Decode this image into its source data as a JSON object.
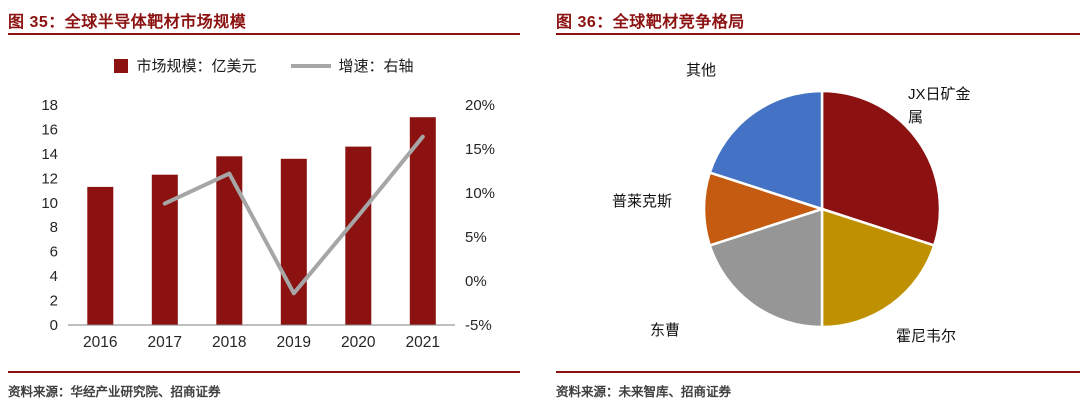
{
  "theme": {
    "accent_red": "#8C1211",
    "text_color": "#262626",
    "source_color": "#404040"
  },
  "left_panel": {
    "title": "图 35：全球半导体靶材市场规模",
    "source": "资料来源：华经产业研究院、招商证券"
  },
  "right_panel": {
    "title": "图 36：全球靶材竞争格局",
    "source": "资料来源：未来智库、招商证券"
  },
  "chart_data": [
    {
      "type": "bar",
      "title": "全球半导体靶材市场规模",
      "categories": [
        "2016",
        "2017",
        "2018",
        "2019",
        "2020",
        "2021"
      ],
      "series": [
        {
          "name": "市场规模：亿美元",
          "kind": "bar",
          "axis": "left",
          "values": [
            11.3,
            12.3,
            13.8,
            13.6,
            14.6,
            17.0
          ]
        },
        {
          "name": "增速：右轴",
          "kind": "line",
          "axis": "right",
          "values": [
            null,
            8.8,
            12.2,
            -1.4,
            7.4,
            16.4
          ]
        }
      ],
      "bar_color": "#8C1211",
      "line_color": "#A6A6A6",
      "left_axis": {
        "min": 0,
        "max": 18,
        "ticks": [
          0,
          2,
          4,
          6,
          8,
          10,
          12,
          14,
          16,
          18
        ]
      },
      "right_axis": {
        "min": -5,
        "max": 20,
        "ticks": [
          -5,
          0,
          5,
          10,
          15,
          20
        ],
        "suffix": "%"
      },
      "legend_position": "top",
      "grid": false
    },
    {
      "type": "pie",
      "title": "全球靶材竞争格局",
      "start_angle_deg": 0,
      "direction": "clockwise",
      "slices": [
        {
          "label": "JX日矿金属",
          "value": 30,
          "color": "#8C1211"
        },
        {
          "label": "霍尼韦尔",
          "value": 20,
          "color": "#BF9000"
        },
        {
          "label": "东曹",
          "value": 20,
          "color": "#969696"
        },
        {
          "label": "普莱克斯",
          "value": 10,
          "color": "#C55A11"
        },
        {
          "label": "其他",
          "value": 20,
          "color": "#4472C4"
        }
      ]
    }
  ]
}
